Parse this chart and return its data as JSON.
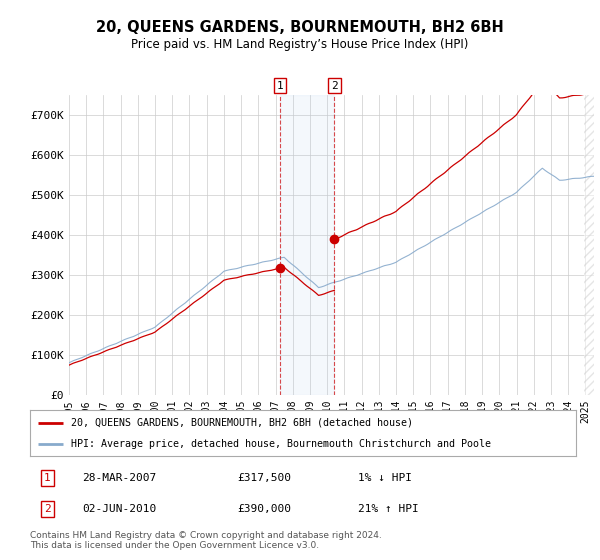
{
  "title": "20, QUEENS GARDENS, BOURNEMOUTH, BH2 6BH",
  "subtitle": "Price paid vs. HM Land Registry’s House Price Index (HPI)",
  "ylim": [
    0,
    750000
  ],
  "yticks": [
    0,
    100000,
    200000,
    300000,
    400000,
    500000,
    600000,
    700000
  ],
  "ytick_labels": [
    "£0",
    "£100K",
    "£200K",
    "£300K",
    "£400K",
    "£500K",
    "£600K",
    "£700K"
  ],
  "background_color": "#ffffff",
  "grid_color": "#cccccc",
  "line1_color": "#cc0000",
  "line2_color": "#88aacc",
  "sale1_year": 2007.25,
  "sale1_price": 317500,
  "sale2_year": 2010.42,
  "sale2_price": 390000,
  "legend_line1": "20, QUEENS GARDENS, BOURNEMOUTH, BH2 6BH (detached house)",
  "legend_line2": "HPI: Average price, detached house, Bournemouth Christchurch and Poole",
  "footer": "Contains HM Land Registry data © Crown copyright and database right 2024.\nThis data is licensed under the Open Government Licence v3.0.",
  "x_start": 1995.0,
  "x_end": 2025.5,
  "xtick_years": [
    1995,
    1996,
    1997,
    1998,
    1999,
    2000,
    2001,
    2002,
    2003,
    2004,
    2005,
    2006,
    2007,
    2008,
    2009,
    2010,
    2011,
    2012,
    2013,
    2014,
    2015,
    2016,
    2017,
    2018,
    2019,
    2020,
    2021,
    2022,
    2023,
    2024,
    2025
  ]
}
